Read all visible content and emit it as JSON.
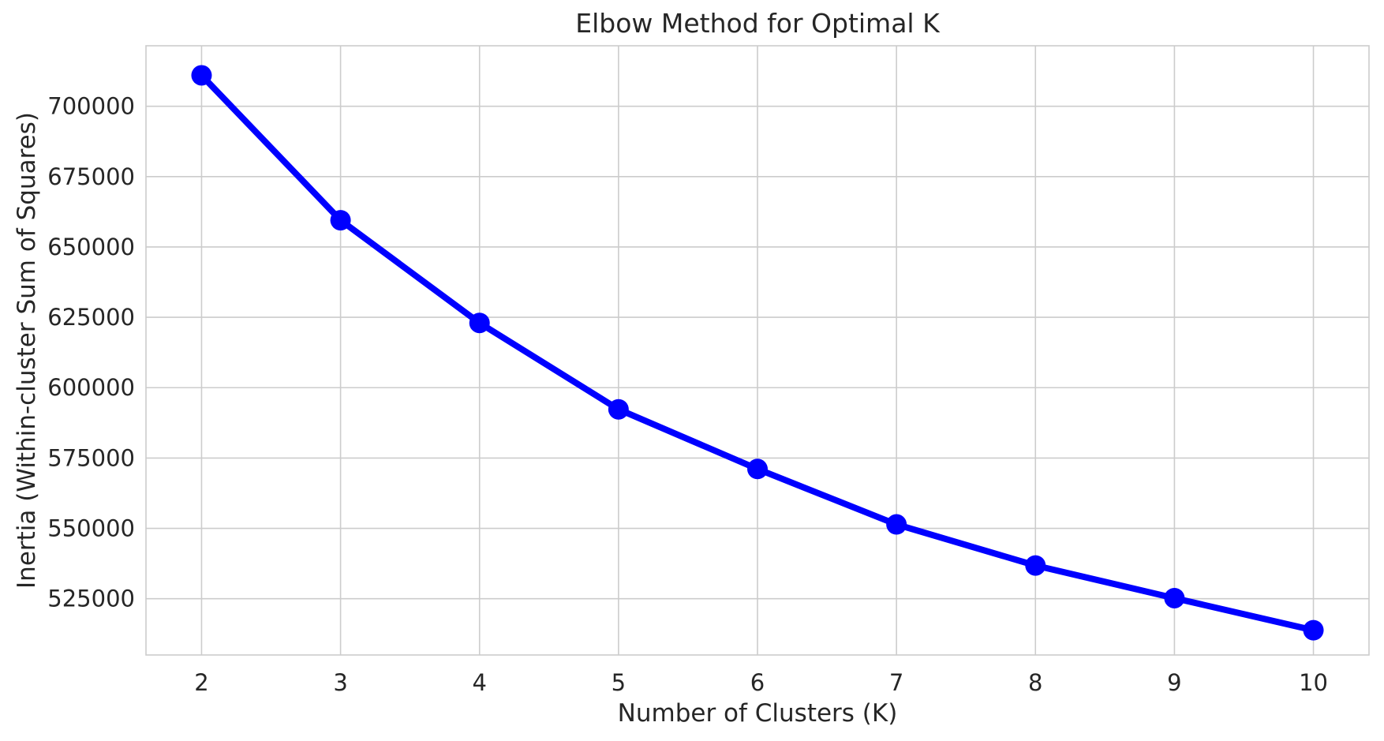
{
  "chart_data": {
    "type": "line",
    "title": "Elbow Method for Optimal K",
    "xlabel": "Number of Clusters (K)",
    "ylabel": "Inertia (Within-cluster Sum of Squares)",
    "series": [
      {
        "name": "inertia",
        "x": [
          2,
          3,
          4,
          5,
          6,
          7,
          8,
          9,
          10
        ],
        "values": [
          711000,
          659500,
          623000,
          592300,
          571100,
          551400,
          536800,
          525200,
          513800
        ]
      }
    ],
    "xticks": [
      2,
      3,
      4,
      5,
      6,
      7,
      8,
      9,
      10
    ],
    "yticks": [
      525000,
      550000,
      575000,
      600000,
      625000,
      650000,
      675000,
      700000
    ],
    "xtick_labels": [
      "2",
      "3",
      "4",
      "5",
      "6",
      "7",
      "8",
      "9",
      "10"
    ],
    "ytick_labels": [
      "525000",
      "550000",
      "575000",
      "600000",
      "625000",
      "650000",
      "675000",
      "700000"
    ],
    "xlim": [
      1.6,
      10.4
    ],
    "ylim": [
      505000,
      721500
    ],
    "grid": true,
    "legend": false,
    "line_color": "#0000ff",
    "marker": "circle",
    "grid_color": "#cccccc",
    "spine_color": "#cccccc",
    "text_color": "#262626",
    "background_color": "#ffffff"
  }
}
